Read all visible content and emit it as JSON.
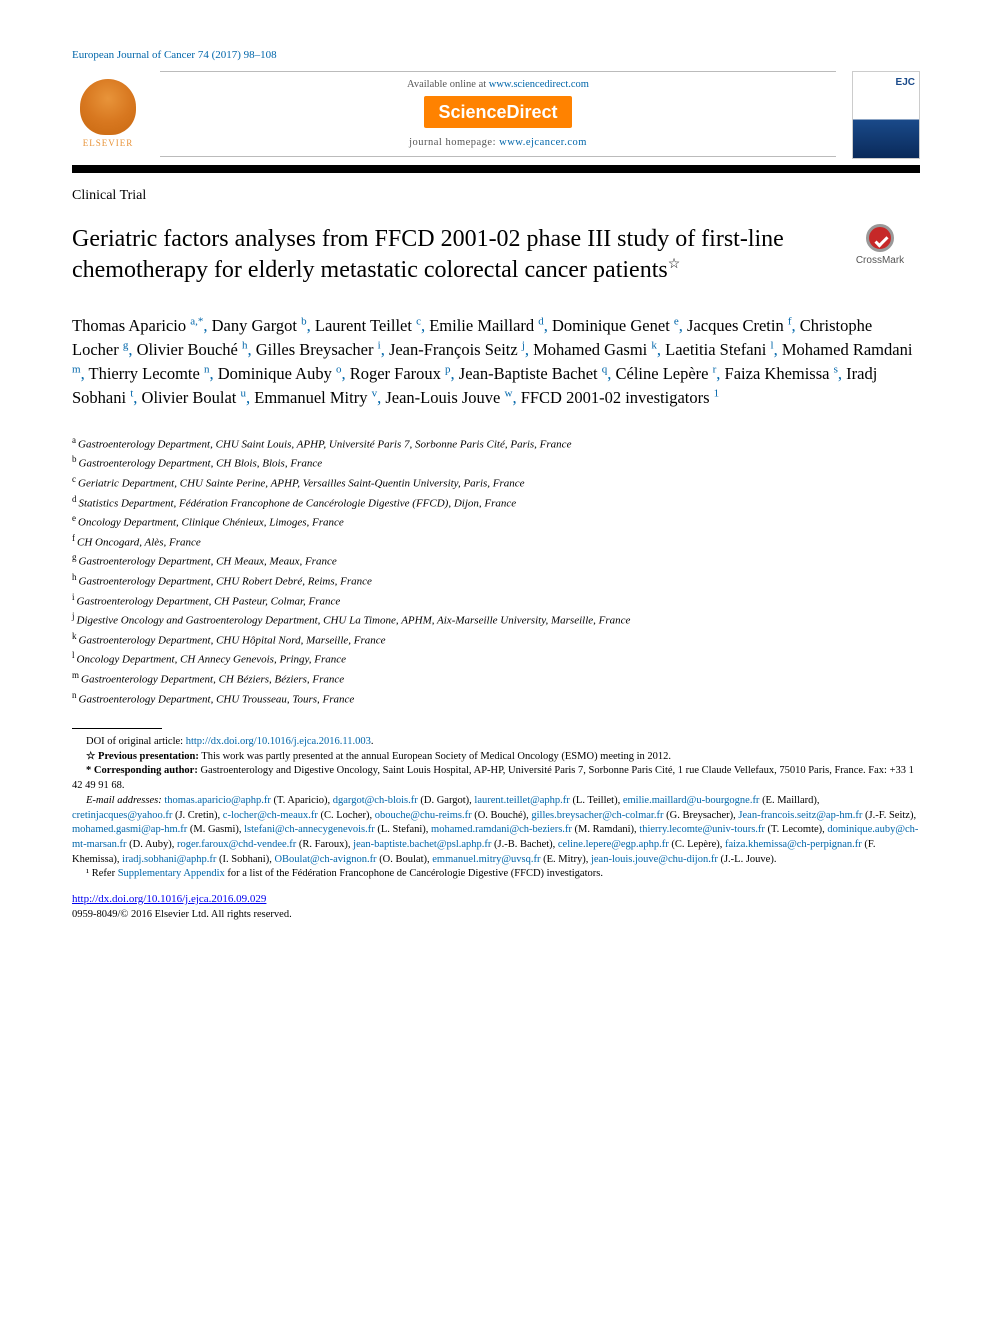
{
  "journal_ref": "European Journal of Cancer 74 (2017) 98–108",
  "header": {
    "elsevier": "ELSEVIER",
    "available": "Available online at ",
    "available_url": "www.sciencedirect.com",
    "sciencedirect": "ScienceDirect",
    "homepage_label": "journal homepage: ",
    "homepage_url": "www.ejcancer.com",
    "cover_abbrev": "EJC"
  },
  "article_type": "Clinical Trial",
  "title": "Geriatric factors analyses from FFCD 2001-02 phase III study of first-line chemotherapy for elderly metastatic colorectal cancer patients",
  "title_note": "☆",
  "crossmark": "CrossMark",
  "authors": [
    {
      "name": "Thomas Aparicio",
      "sup": "a,*"
    },
    {
      "name": "Dany Gargot",
      "sup": "b"
    },
    {
      "name": "Laurent Teillet",
      "sup": "c"
    },
    {
      "name": "Emilie Maillard",
      "sup": "d"
    },
    {
      "name": "Dominique Genet",
      "sup": "e"
    },
    {
      "name": "Jacques Cretin",
      "sup": "f"
    },
    {
      "name": "Christophe Locher",
      "sup": "g"
    },
    {
      "name": "Olivier Bouché",
      "sup": "h"
    },
    {
      "name": "Gilles Breysacher",
      "sup": "i"
    },
    {
      "name": "Jean-François Seitz",
      "sup": "j"
    },
    {
      "name": "Mohamed Gasmi",
      "sup": "k"
    },
    {
      "name": "Laetitia Stefani",
      "sup": "l"
    },
    {
      "name": "Mohamed Ramdani",
      "sup": "m"
    },
    {
      "name": "Thierry Lecomte",
      "sup": "n"
    },
    {
      "name": "Dominique Auby",
      "sup": "o"
    },
    {
      "name": "Roger Faroux",
      "sup": "p"
    },
    {
      "name": "Jean-Baptiste Bachet",
      "sup": "q"
    },
    {
      "name": "Céline Lepère",
      "sup": "r"
    },
    {
      "name": "Faiza Khemissa",
      "sup": "s"
    },
    {
      "name": "Iradj Sobhani",
      "sup": "t"
    },
    {
      "name": "Olivier Boulat",
      "sup": "u"
    },
    {
      "name": "Emmanuel Mitry",
      "sup": "v"
    },
    {
      "name": "Jean-Louis Jouve",
      "sup": "w"
    },
    {
      "name": "FFCD 2001-02 investigators",
      "sup": "1"
    }
  ],
  "affiliations": [
    {
      "sup": "a",
      "text": "Gastroenterology Department, CHU Saint Louis, APHP, Université Paris 7, Sorbonne Paris Cité, Paris, France"
    },
    {
      "sup": "b",
      "text": "Gastroenterology Department, CH Blois, Blois, France"
    },
    {
      "sup": "c",
      "text": "Geriatric Department, CHU Sainte Perine, APHP, Versailles Saint-Quentin University, Paris, France"
    },
    {
      "sup": "d",
      "text": "Statistics Department, Fédération Francophone de Cancérologie Digestive (FFCD), Dijon, France"
    },
    {
      "sup": "e",
      "text": "Oncology Department, Clinique Chénieux, Limoges, France"
    },
    {
      "sup": "f",
      "text": "CH Oncogard, Alès, France"
    },
    {
      "sup": "g",
      "text": "Gastroenterology Department, CH Meaux, Meaux, France"
    },
    {
      "sup": "h",
      "text": "Gastroenterology Department, CHU Robert Debré, Reims, France"
    },
    {
      "sup": "i",
      "text": "Gastroenterology Department, CH Pasteur, Colmar, France"
    },
    {
      "sup": "j",
      "text": "Digestive Oncology and Gastroenterology Department, CHU La Timone, APHM, Aix-Marseille University, Marseille, France"
    },
    {
      "sup": "k",
      "text": "Gastroenterology Department, CHU Hôpital Nord, Marseille, France"
    },
    {
      "sup": "l",
      "text": "Oncology Department, CH Annecy Genevois, Pringy, France"
    },
    {
      "sup": "m",
      "text": "Gastroenterology Department, CH Béziers, Béziers, France"
    },
    {
      "sup": "n",
      "text": "Gastroenterology Department, CHU Trousseau, Tours, France"
    }
  ],
  "footnotes": {
    "doi_orig_label": "DOI of original article: ",
    "doi_orig_url": "http://dx.doi.org/10.1016/j.ejca.2016.11.003",
    "prev_pres_label": "☆ Previous presentation:",
    "prev_pres_text": " This work was partly presented at the annual European Society of Medical Oncology (ESMO) meeting in 2012.",
    "corr_label": "* Corresponding author:",
    "corr_text": " Gastroenterology and Digestive Oncology, Saint Louis Hospital, AP-HP, Université Paris 7, Sorbonne Paris Cité, 1 rue Claude Vellefaux, 75010 Paris, France. Fax: +33 1 42 49 91 68.",
    "email_label": "E-mail addresses: ",
    "emails": [
      {
        "email": "thomas.aparicio@aphp.fr",
        "who": "T. Aparicio"
      },
      {
        "email": "dgargot@ch-blois.fr",
        "who": "D. Gargot"
      },
      {
        "email": "laurent.teillet@aphp.fr",
        "who": "L. Teillet"
      },
      {
        "email": "emilie.maillard@u-bourgogne.fr",
        "who": "E. Maillard"
      },
      {
        "email": "cretinjacques@yahoo.fr",
        "who": "J. Cretin"
      },
      {
        "email": "c-locher@ch-meaux.fr",
        "who": "C. Locher"
      },
      {
        "email": "obouche@chu-reims.fr",
        "who": "O. Bouché"
      },
      {
        "email": "gilles.breysacher@ch-colmar.fr",
        "who": "G. Breysacher"
      },
      {
        "email": "Jean-francois.seitz@ap-hm.fr",
        "who": "J.-F. Seitz"
      },
      {
        "email": "mohamed.gasmi@ap-hm.fr",
        "who": "M. Gasmi"
      },
      {
        "email": "lstefani@ch-annecygenevois.fr",
        "who": "L. Stefani"
      },
      {
        "email": "mohamed.ramdani@ch-beziers.fr",
        "who": "M. Ramdani"
      },
      {
        "email": "thierry.lecomte@univ-tours.fr",
        "who": "T. Lecomte"
      },
      {
        "email": "dominique.auby@ch-mt-marsan.fr",
        "who": "D. Auby"
      },
      {
        "email": "roger.faroux@chd-vendee.fr",
        "who": "R. Faroux"
      },
      {
        "email": "jean-baptiste.bachet@psl.aphp.fr",
        "who": "J.-B. Bachet"
      },
      {
        "email": "celine.lepere@egp.aphp.fr",
        "who": "C. Lepère"
      },
      {
        "email": "faiza.khemissa@ch-perpignan.fr",
        "who": "F. Khemissa"
      },
      {
        "email": "iradj.sobhani@aphp.fr",
        "who": "I. Sobhani"
      },
      {
        "email": "OBoulat@ch-avignon.fr",
        "who": "O. Boulat"
      },
      {
        "email": "emmanuel.mitry@uvsq.fr",
        "who": "E. Mitry"
      },
      {
        "email": "jean-louis.jouve@chu-dijon.fr",
        "who": "J.-L. Jouve"
      }
    ],
    "investigators_label": "¹ Refer ",
    "investigators_link": "Supplementary Appendix",
    "investigators_text": " for a list of the Fédération Francophone de Cancérologie Digestive (FFCD) investigators."
  },
  "doi_url": "http://dx.doi.org/10.1016/j.ejca.2016.09.029",
  "copyright": "0959-8049/© 2016 Elsevier Ltd. All rights reserved.",
  "colors": {
    "link": "#0066aa",
    "elsevier_orange": "#e8943a",
    "sd_orange": "#ff8200",
    "crossmark_red": "#c62828"
  }
}
